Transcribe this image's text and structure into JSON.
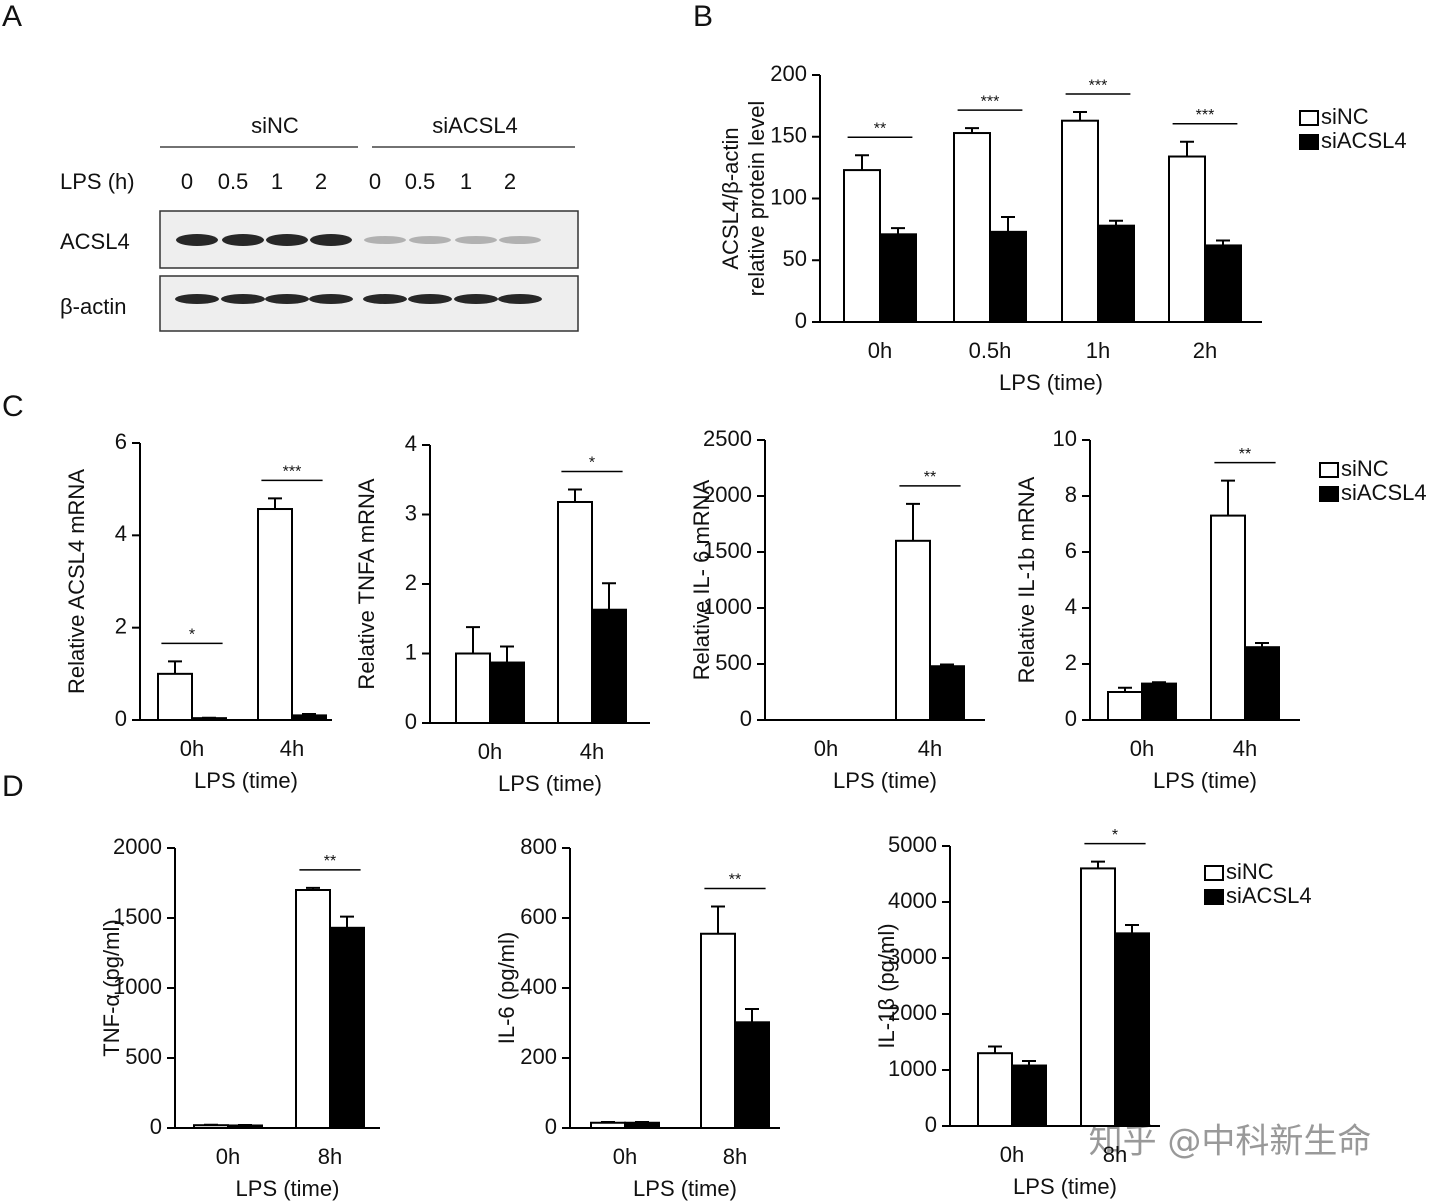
{
  "panel_labels": [
    "A",
    "B",
    "C",
    "D"
  ],
  "blot": {
    "groups": [
      "siNC",
      "siACSL4"
    ],
    "lps_label": "LPS (h)",
    "lanes": [
      "0",
      "0.5",
      "1",
      "2",
      "0",
      "0.5",
      "1",
      "2"
    ],
    "rows": [
      "ACSL4",
      "β-actin"
    ]
  },
  "watermark": "知乎 @中科新生命",
  "chart_data": [
    {
      "type": "bar",
      "y_label": [
        "ACSL4/β-actin",
        "relative protein level"
      ],
      "x_label": "LPS (time)",
      "categories": [
        "0h",
        "0.5h",
        "1h",
        "2h"
      ],
      "series": [
        {
          "name": "siNC",
          "color": "#ffffff",
          "values": [
            123,
            153,
            163,
            134
          ],
          "errors": [
            12,
            4,
            7,
            12
          ]
        },
        {
          "name": "siACSL4",
          "color": "#000000",
          "values": [
            71,
            73,
            78,
            62
          ],
          "errors": [
            5,
            12,
            4,
            4
          ]
        }
      ],
      "significance": [
        "**",
        "***",
        "***",
        "***"
      ],
      "ylim": [
        0,
        200
      ],
      "yticks": [
        0,
        50,
        100,
        150,
        200
      ],
      "legend": true
    },
    {
      "type": "bar",
      "y_label": [
        "Relative ACSL4 mRNA"
      ],
      "x_label": "LPS (time)",
      "categories": [
        "0h",
        "4h"
      ],
      "series": [
        {
          "color": "#ffffff",
          "values": [
            1.0,
            4.57
          ],
          "errors": [
            0.27,
            0.23
          ]
        },
        {
          "color": "#000000",
          "values": [
            0.04,
            0.1
          ],
          "errors": [
            0.01,
            0.03
          ]
        }
      ],
      "significance": [
        "*",
        "***"
      ],
      "ylim": [
        0,
        6
      ],
      "yticks": [
        0,
        2,
        4,
        6
      ],
      "legend": false
    },
    {
      "type": "bar",
      "y_label": [
        "Relative TNFA mRNA"
      ],
      "x_label": "LPS (time)",
      "categories": [
        "0h",
        "4h"
      ],
      "series": [
        {
          "color": "#ffffff",
          "values": [
            1.0,
            3.18
          ],
          "errors": [
            0.38,
            0.18
          ]
        },
        {
          "color": "#000000",
          "values": [
            0.87,
            1.63
          ],
          "errors": [
            0.23,
            0.38
          ]
        }
      ],
      "significance": [
        null,
        "*"
      ],
      "ylim": [
        0,
        4
      ],
      "yticks": [
        0,
        1,
        2,
        3,
        4
      ],
      "legend": false
    },
    {
      "type": "bar",
      "y_label": [
        "Relative IL- 6 mRNA"
      ],
      "x_label": "LPS (time)",
      "categories": [
        "0h",
        "4h"
      ],
      "series": [
        {
          "color": "#ffffff",
          "values": [
            0,
            1600
          ],
          "errors": [
            null,
            330
          ]
        },
        {
          "color": "#000000",
          "values": [
            0,
            480
          ],
          "errors": [
            null,
            15
          ]
        }
      ],
      "significance": [
        null,
        "**"
      ],
      "ylim": [
        0,
        2500
      ],
      "yticks": [
        0,
        500,
        1000,
        1500,
        2000,
        2500
      ],
      "legend": false
    },
    {
      "type": "bar",
      "y_label": [
        "Relative IL-1b mRNA"
      ],
      "x_label": "LPS (time)",
      "categories": [
        "0h",
        "4h"
      ],
      "series": [
        {
          "name": "siNC",
          "color": "#ffffff",
          "values": [
            1.0,
            7.3
          ],
          "errors": [
            0.15,
            1.25
          ]
        },
        {
          "name": "siACSL4",
          "color": "#000000",
          "values": [
            1.3,
            2.6
          ],
          "errors": [
            0.05,
            0.15
          ]
        }
      ],
      "significance": [
        null,
        "**"
      ],
      "ylim": [
        0,
        10
      ],
      "yticks": [
        0,
        2,
        4,
        6,
        8,
        10
      ],
      "legend": true
    },
    {
      "type": "bar",
      "y_label": [
        "TNF-α (pg/ml)"
      ],
      "x_label": "LPS (time)",
      "categories": [
        "0h",
        "8h"
      ],
      "series": [
        {
          "color": "#ffffff",
          "values": [
            20,
            1700
          ],
          "errors": [
            3,
            15
          ]
        },
        {
          "color": "#000000",
          "values": [
            18,
            1430
          ],
          "errors": [
            3,
            80
          ]
        }
      ],
      "significance": [
        null,
        "**"
      ],
      "ylim": [
        0,
        2000
      ],
      "yticks": [
        0,
        500,
        1000,
        1500,
        2000
      ],
      "legend": false
    },
    {
      "type": "bar",
      "y_label": [
        "IL-6 (pg/ml)"
      ],
      "x_label": "LPS (time)",
      "categories": [
        "0h",
        "8h"
      ],
      "series": [
        {
          "color": "#ffffff",
          "values": [
            15,
            555
          ],
          "errors": [
            2,
            78
          ]
        },
        {
          "color": "#000000",
          "values": [
            15,
            302
          ],
          "errors": [
            2,
            38
          ]
        }
      ],
      "significance": [
        null,
        "**"
      ],
      "ylim": [
        0,
        800
      ],
      "yticks": [
        0,
        200,
        400,
        600,
        800
      ],
      "legend": false
    },
    {
      "type": "bar",
      "y_label": [
        "IL-1β (pg/ml)"
      ],
      "x_label": "LPS (time)",
      "categories": [
        "0h",
        "8h"
      ],
      "series": [
        {
          "name": "siNC",
          "color": "#ffffff",
          "values": [
            1300,
            4600
          ],
          "errors": [
            120,
            120
          ]
        },
        {
          "name": "siACSL4",
          "color": "#000000",
          "values": [
            1080,
            3440
          ],
          "errors": [
            80,
            150
          ]
        }
      ],
      "significance": [
        null,
        "*"
      ],
      "ylim": [
        0,
        5000
      ],
      "yticks": [
        0,
        1000,
        2000,
        3000,
        4000,
        5000
      ],
      "legend": true
    }
  ]
}
